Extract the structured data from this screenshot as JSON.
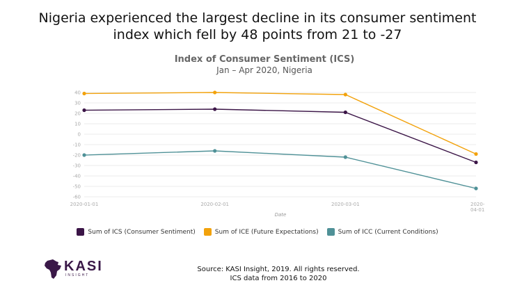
{
  "headline": {
    "line1": "Nigeria experienced the largest decline in its consumer sentiment",
    "line2": "index which fell by 48 points from 21 to -27"
  },
  "chart_data": {
    "type": "line",
    "title": "Index of Consumer Sentiment (ICS)",
    "subtitle": "Jan – Apr 2020, Nigeria",
    "xlabel": "Date",
    "ylabel": "",
    "categories": [
      "2020-01-01",
      "2020-02-01",
      "2020-03-01",
      "2020-04-01"
    ],
    "x_tick_labels": [
      "2020-01-01",
      "2020-02-01",
      "2020-03-01",
      "2020-\n04-01"
    ],
    "yticks": [
      40,
      30,
      20,
      10,
      0,
      -10,
      -20,
      -30,
      -40,
      -50,
      -60
    ],
    "ylim": [
      -60,
      40
    ],
    "series": [
      {
        "name": "Sum of ICS (Consumer Sentiment)",
        "color": "#3b1547",
        "values": [
          23,
          24,
          21,
          -27
        ]
      },
      {
        "name": "Sum of ICE (Future Expectations)",
        "color": "#f2a20c",
        "values": [
          39,
          40,
          38,
          -19
        ]
      },
      {
        "name": "Sum of ICC (Current Conditions)",
        "color": "#4f9197",
        "values": [
          -20,
          -16,
          -22,
          -52
        ]
      }
    ]
  },
  "logo": {
    "name": "KASI",
    "tagline": "INSIGHT"
  },
  "source": {
    "line1": "Source: KASI Insight, 2019. All rights reserved.",
    "line2": "ICS data from 2016 to 2020"
  }
}
